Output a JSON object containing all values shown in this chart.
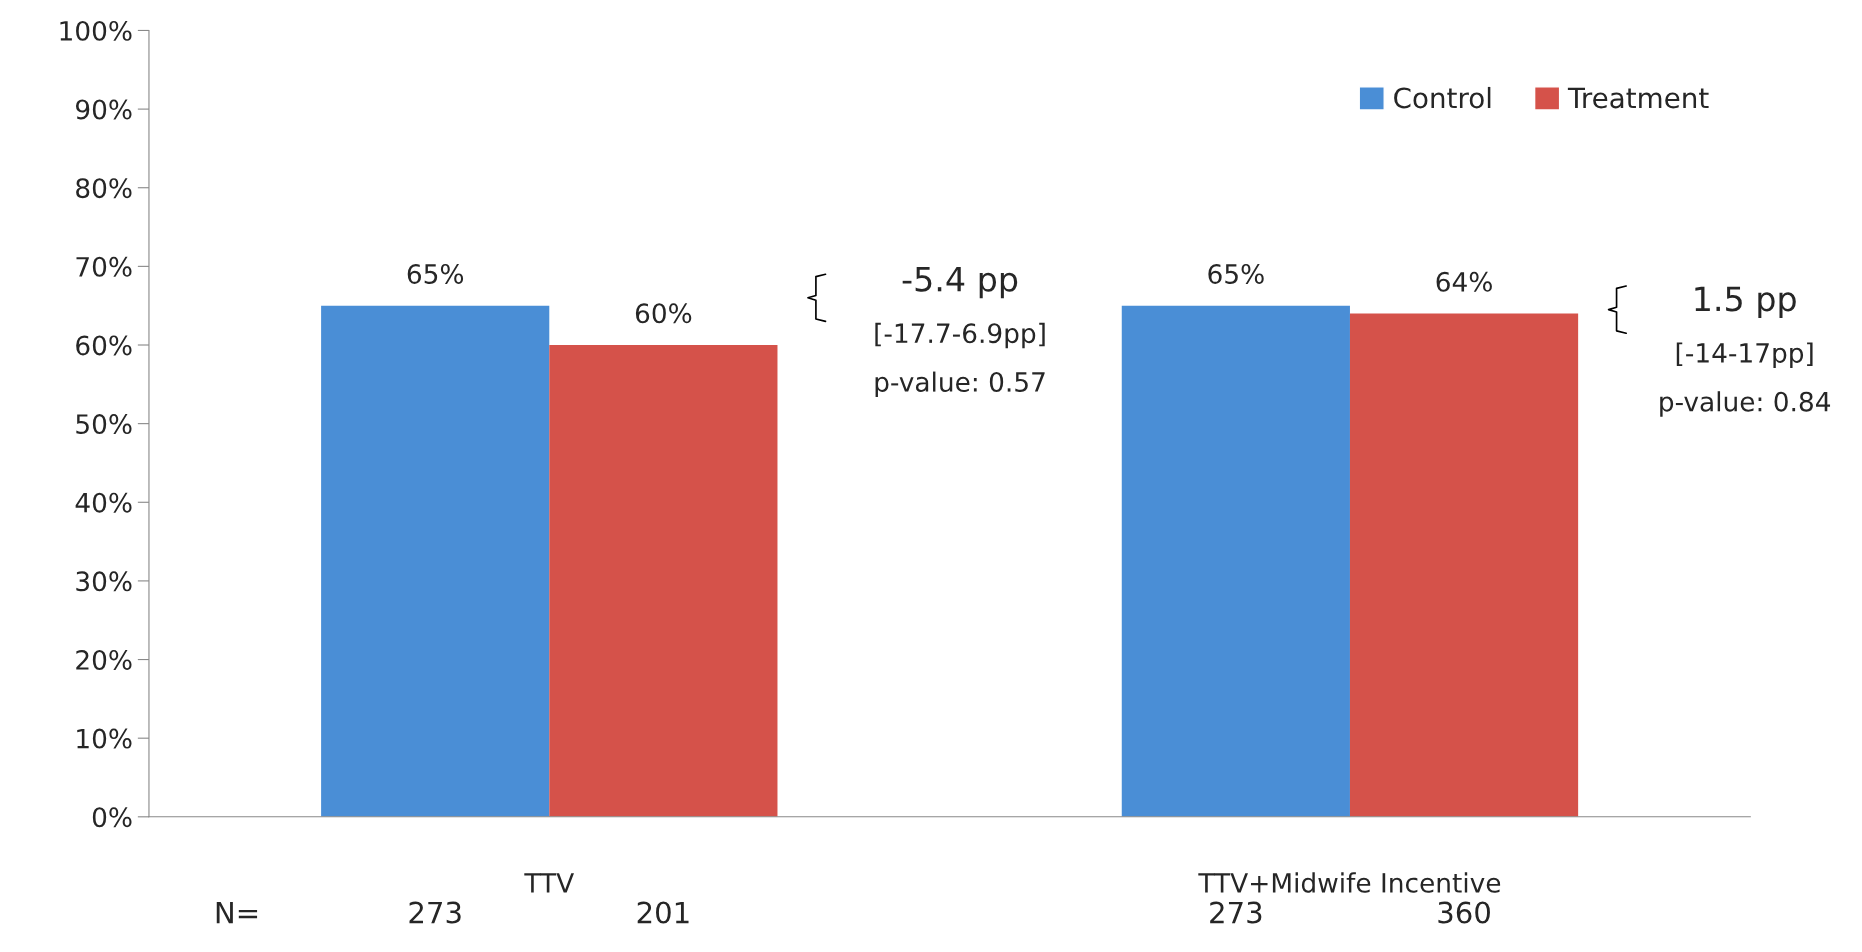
{
  "chart_data": {
    "type": "bar",
    "categories": [
      "TTV",
      "TTV+Midwife Incentive"
    ],
    "series": [
      {
        "name": "Control",
        "color": "#4a8ed6",
        "values": [
          65,
          65
        ],
        "value_labels": [
          "65%",
          "65%"
        ]
      },
      {
        "name": "Treatment",
        "color": "#d5524a",
        "values": [
          60,
          64
        ],
        "value_labels": [
          "60%",
          "64%"
        ]
      }
    ],
    "ylim": [
      0,
      100
    ],
    "yticks": [
      {
        "value": 0,
        "label": "0%"
      },
      {
        "value": 10,
        "label": "10%"
      },
      {
        "value": 20,
        "label": "20%"
      },
      {
        "value": 30,
        "label": "30%"
      },
      {
        "value": 40,
        "label": "40%"
      },
      {
        "value": 50,
        "label": "50%"
      },
      {
        "value": 60,
        "label": "60%"
      },
      {
        "value": 70,
        "label": "70%"
      },
      {
        "value": 80,
        "label": "80%"
      },
      {
        "value": 90,
        "label": "90%"
      },
      {
        "value": 100,
        "label": "100%"
      }
    ],
    "grid": false,
    "legend": "top right",
    "annotations": [
      "-5.4 pp",
      "[-17.7-6.9pp]",
      "p-value: 0.57",
      "1.5 pp",
      "[-14-17pp]",
      "p-value: 0.84",
      "N=",
      "273",
      "201",
      "273",
      "360"
    ]
  }
}
